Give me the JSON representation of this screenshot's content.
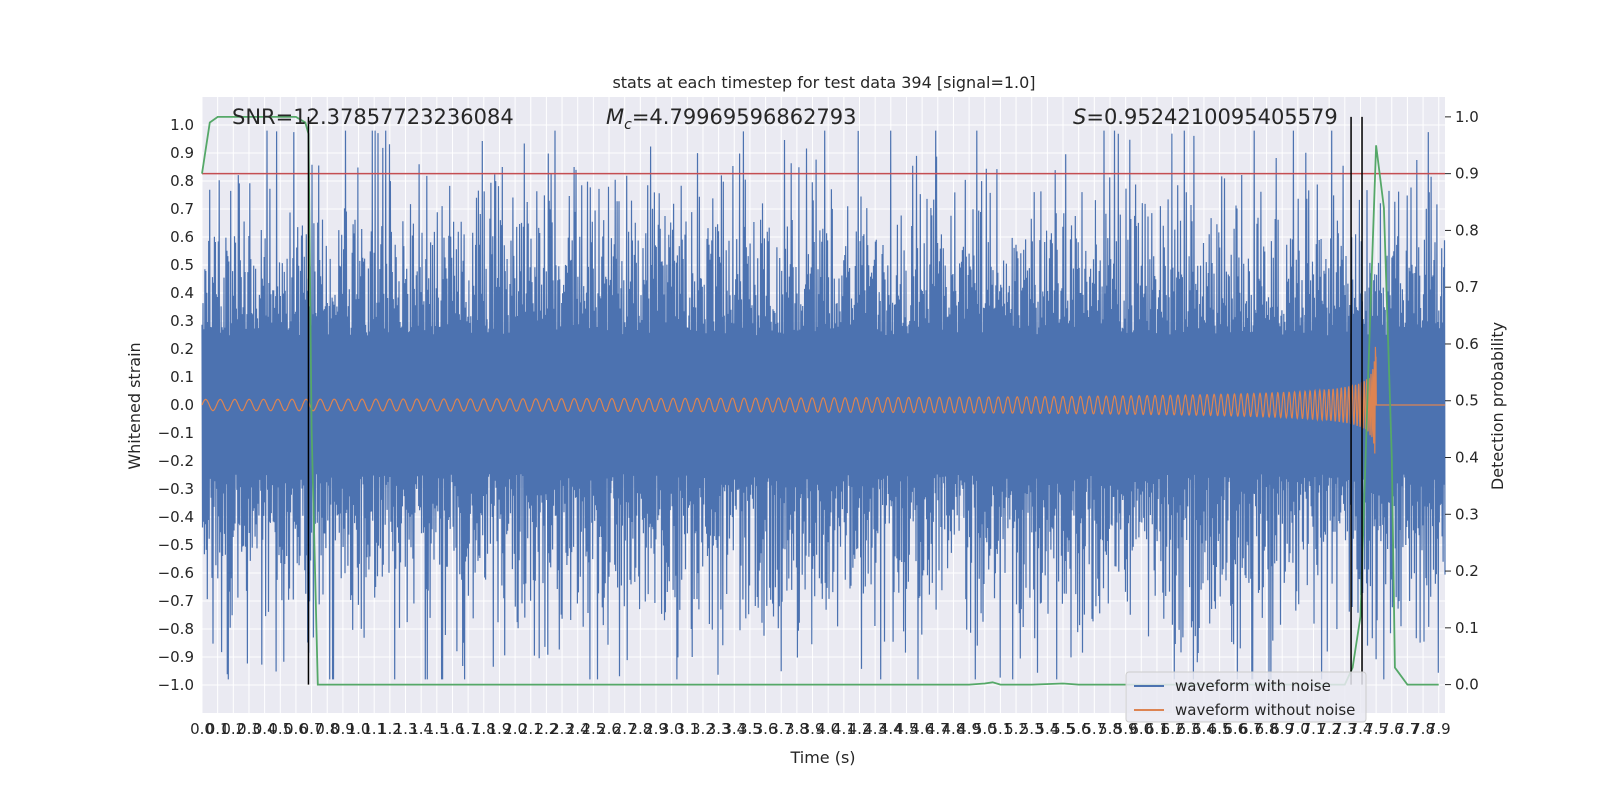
{
  "chart_data": {
    "type": "line",
    "title": "stats at each timestep for test data 394 [signal=1.0]",
    "xlabel": "Time (s)",
    "ylabel": "Whitened strain",
    "y2label": "Detection probability",
    "xlim": [
      0.0,
      7.94
    ],
    "ylim": [
      -1.1,
      1.1
    ],
    "y2lim": [
      -0.05,
      1.035
    ],
    "grid": true,
    "legend_position": "lower-right",
    "x_ticks": [
      "0.0",
      "0.1",
      "0.2",
      "0.3",
      "0.4",
      "0.5",
      "0.6",
      "0.7",
      "0.8",
      "0.9",
      "1.0",
      "1.1",
      "1.2",
      "1.3",
      "1.4",
      "1.5",
      "1.6",
      "1.7",
      "1.8",
      "1.9",
      "2.0",
      "2.1",
      "2.2",
      "2.3",
      "2.4",
      "2.5",
      "2.6",
      "2.7",
      "2.8",
      "2.9",
      "3.0",
      "3.1",
      "3.2",
      "3.3",
      "3.4",
      "3.5",
      "3.6",
      "3.7",
      "3.8",
      "3.9",
      "4.0",
      "4.1",
      "4.2",
      "4.3",
      "4.4",
      "4.5",
      "4.6",
      "4.7",
      "4.8",
      "4.9",
      "5.0",
      "5.1",
      "5.2",
      "5.3",
      "5.4",
      "5.5",
      "5.6",
      "5.7",
      "5.8",
      "5.9",
      "6.0",
      "6.1",
      "6.2",
      "6.3",
      "6.4",
      "6.5",
      "6.6",
      "6.7",
      "6.8",
      "6.9",
      "7.0",
      "7.1",
      "7.2",
      "7.3",
      "7.4",
      "7.5",
      "7.6",
      "7.7",
      "7.8",
      "7.9"
    ],
    "y_ticks": [
      "1.0",
      "0.9",
      "0.8",
      "0.7",
      "0.6",
      "0.5",
      "0.4",
      "0.3",
      "0.2",
      "0.1",
      "0.0",
      "−0.1",
      "−0.2",
      "−0.3",
      "−0.4",
      "−0.5",
      "−0.6",
      "−0.7",
      "−0.8",
      "−0.9",
      "−1.0"
    ],
    "y2_ticks": [
      "1.0",
      "0.9",
      "0.8",
      "0.7",
      "0.6",
      "0.5",
      "0.4",
      "0.3",
      "0.2",
      "0.1",
      "0.0"
    ],
    "annotations": {
      "snr": "SNR=12.37857723236084",
      "mc_symbol": "M",
      "mc_sub": "c",
      "mc_value": "=4.79969596862793",
      "s_symbol": "S",
      "s_value": "=0.9524210095405579"
    },
    "series": [
      {
        "name": "waveform with noise",
        "color": "#4c72b0",
        "kind": "noise",
        "amplitude_typical": 0.55,
        "amplitude_max": 0.98
      },
      {
        "name": "waveform without noise",
        "color": "#dd8452",
        "kind": "chirp",
        "amplitude_start": 0.02,
        "amplitude_peak": 0.3,
        "merger_time": 7.5
      },
      {
        "name": "detection probability",
        "color": "#55a868",
        "axis": "right",
        "x": [
          0.0,
          0.05,
          0.1,
          0.2,
          0.3,
          0.4,
          0.5,
          0.6,
          0.66,
          0.68,
          0.7,
          0.74,
          0.8,
          1.0,
          2.0,
          3.0,
          4.0,
          4.8,
          4.9,
          5.0,
          5.05,
          5.1,
          5.3,
          5.5,
          5.6,
          5.7,
          6.0,
          6.5,
          7.0,
          7.2,
          7.3,
          7.35,
          7.4,
          7.45,
          7.5,
          7.55,
          7.6,
          7.62,
          7.7,
          7.8,
          7.9
        ],
        "y": [
          0.9,
          0.99,
          1.0,
          1.0,
          1.0,
          1.0,
          1.0,
          1.0,
          0.99,
          0.97,
          0.45,
          0.0,
          0.0,
          0.0,
          0.0,
          0.0,
          0.0,
          0.0,
          0.0,
          0.002,
          0.004,
          0.0,
          0.0,
          0.002,
          0.0,
          0.0,
          0.0,
          0.0,
          0.0,
          0.0,
          0.0,
          0.03,
          0.12,
          0.55,
          0.95,
          0.84,
          0.4,
          0.03,
          0.0,
          0.0,
          0.0
        ]
      }
    ],
    "thresholds": [
      {
        "value": 0.9,
        "axis": "right",
        "color": "#c44e52"
      }
    ],
    "vertical_markers": [
      0.68,
      7.34,
      7.41
    ]
  }
}
